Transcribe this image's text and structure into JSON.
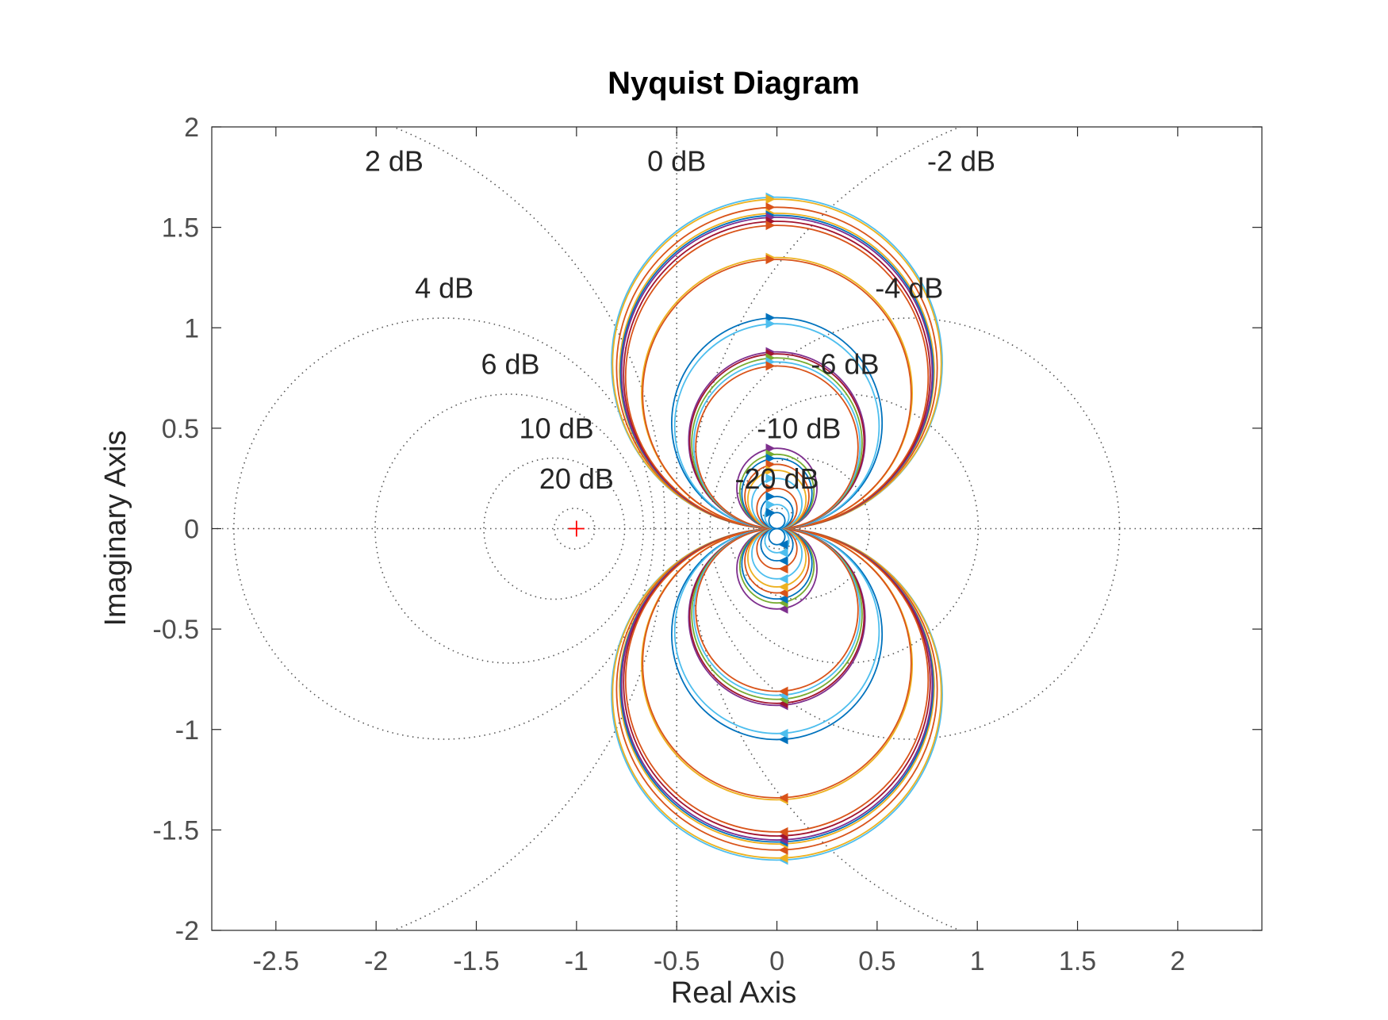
{
  "chart_data": {
    "type": "line",
    "title": "Nyquist Diagram",
    "xlabel": "Real Axis",
    "ylabel": "Imaginary Axis",
    "xlim": [
      -2.82,
      2.42
    ],
    "ylim": [
      -2,
      2
    ],
    "xticks": [
      -2.5,
      -2,
      -1.5,
      -1,
      -0.5,
      0,
      0.5,
      1,
      1.5,
      2
    ],
    "xtick_labels": [
      "-2.5",
      "-2",
      "-1.5",
      "-1",
      "-0.5",
      "0",
      "0.5",
      "1",
      "1.5",
      "2"
    ],
    "yticks": [
      2,
      1.5,
      1,
      0.5,
      0,
      -0.5,
      -1,
      -1.5,
      -2
    ],
    "ytick_labels": [
      "2",
      "1.5",
      "1",
      "0.5",
      "0",
      "-0.5",
      "-1",
      "-1.5",
      "-2"
    ],
    "grid": "M-circles (dotted)",
    "critical_point": [
      -1,
      0
    ],
    "m_circles": [
      {
        "db": 2,
        "label": "2 dB",
        "label_pos": [
          -1.91,
          1.78
        ]
      },
      {
        "db": 0,
        "label": "0 dB",
        "label_pos": [
          -0.5,
          1.78
        ]
      },
      {
        "db": -2,
        "label": "-2 dB",
        "label_pos": [
          0.92,
          1.78
        ]
      },
      {
        "db": 4,
        "label": "4 dB",
        "label_pos": [
          -1.66,
          1.15
        ]
      },
      {
        "db": -4,
        "label": "-4 dB",
        "label_pos": [
          0.66,
          1.15
        ]
      },
      {
        "db": 6,
        "label": "6 dB",
        "label_pos": [
          -1.33,
          0.77
        ]
      },
      {
        "db": -6,
        "label": "-6 dB",
        "label_pos": [
          0.34,
          0.77
        ]
      },
      {
        "db": 10,
        "label": "10 dB",
        "label_pos": [
          -1.1,
          0.45
        ]
      },
      {
        "db": -10,
        "label": "-10 dB",
        "label_pos": [
          0.11,
          0.45
        ]
      },
      {
        "db": 20,
        "label": "20 dB",
        "label_pos": [
          -1.0,
          0.2
        ]
      },
      {
        "db": -20,
        "label": "-20 dB",
        "label_pos": [
          0.0,
          0.2
        ]
      }
    ],
    "series": [
      {
        "peak_imag": 1.65,
        "color": "#4DBEEE"
      },
      {
        "peak_imag": 1.64,
        "color": "#EDB120"
      },
      {
        "peak_imag": 1.6,
        "color": "#D95319"
      },
      {
        "peak_imag": 1.57,
        "color": "#EDB120"
      },
      {
        "peak_imag": 1.56,
        "color": "#0072BD"
      },
      {
        "peak_imag": 1.55,
        "color": "#7E2F8E"
      },
      {
        "peak_imag": 1.53,
        "color": "#A2142F"
      },
      {
        "peak_imag": 1.51,
        "color": "#D95319"
      },
      {
        "peak_imag": 1.35,
        "color": "#EDB120"
      },
      {
        "peak_imag": 1.34,
        "color": "#D95319"
      },
      {
        "peak_imag": 1.05,
        "color": "#0072BD"
      },
      {
        "peak_imag": 1.02,
        "color": "#4DBEEE"
      },
      {
        "peak_imag": 0.88,
        "color": "#7E2F8E"
      },
      {
        "peak_imag": 0.87,
        "color": "#A2142F"
      },
      {
        "peak_imag": 0.85,
        "color": "#77AC30"
      },
      {
        "peak_imag": 0.83,
        "color": "#4DBEEE"
      },
      {
        "peak_imag": 0.81,
        "color": "#D95319"
      },
      {
        "peak_imag": 0.4,
        "color": "#7E2F8E"
      },
      {
        "peak_imag": 0.37,
        "color": "#77AC30"
      },
      {
        "peak_imag": 0.35,
        "color": "#0072BD"
      },
      {
        "peak_imag": 0.32,
        "color": "#D95319"
      },
      {
        "peak_imag": 0.29,
        "color": "#EDB120"
      },
      {
        "peak_imag": 0.25,
        "color": "#4DBEEE"
      },
      {
        "peak_imag": 0.2,
        "color": "#D95319"
      },
      {
        "peak_imag": 0.16,
        "color": "#0072BD"
      },
      {
        "peak_imag": 0.12,
        "color": "#4DBEEE"
      },
      {
        "peak_imag": 0.08,
        "color": "#0072BD"
      }
    ]
  }
}
